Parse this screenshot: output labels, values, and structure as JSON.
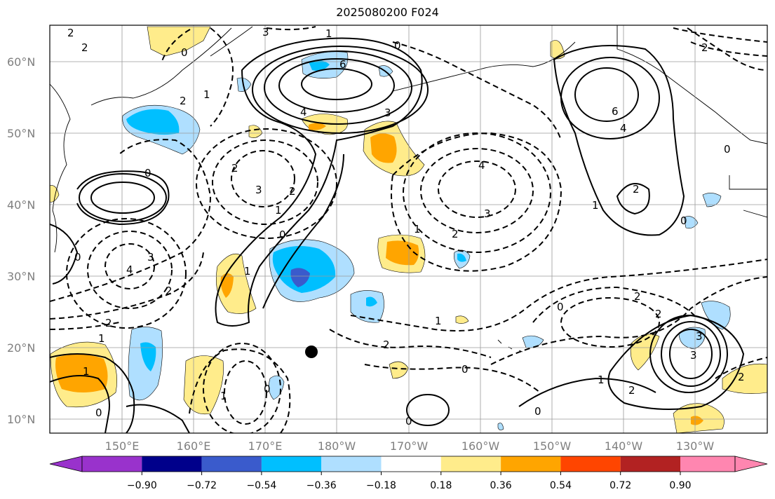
{
  "title": "2025080200 F024",
  "lat_labels": [
    "60°N",
    "50°N",
    "40°N",
    "30°N",
    "20°N",
    "10°N"
  ],
  "lon_labels": [
    "150°E",
    "160°E",
    "170°E",
    "180°W",
    "170°W",
    "160°W",
    "150°W",
    "140°W",
    "130°W"
  ],
  "colorbar": {
    "colors": [
      "#9932cc",
      "#00008b",
      "#3a5bcc",
      "#00bfff",
      "#afdfff",
      "#ffffff",
      "#ffec8b",
      "#ffa500",
      "#ff4500",
      "#b22222",
      "#ff86b0"
    ],
    "tick_labels": [
      "−0.90",
      "−0.72",
      "−0.54",
      "−0.36",
      "−0.18",
      "0.18",
      "0.36",
      "0.54",
      "0.72",
      "0.90"
    ]
  },
  "contour_labels": [
    "2",
    "2",
    "3",
    "0",
    "1",
    "6",
    "4",
    "3",
    "2",
    "1",
    "0",
    "6",
    "4",
    "2",
    "0",
    "2",
    "3",
    "4",
    "3",
    "2",
    "0",
    "1",
    "2",
    "1",
    "0",
    "1",
    "0",
    "3",
    "2",
    "0",
    "2",
    "2",
    "1",
    "0",
    "1",
    "2",
    "3",
    "4",
    "0",
    "1",
    "0",
    "2",
    "2",
    "1",
    "0",
    "1",
    "0",
    "2",
    "3",
    "2",
    "0",
    "1"
  ],
  "marker": "storm-center"
}
